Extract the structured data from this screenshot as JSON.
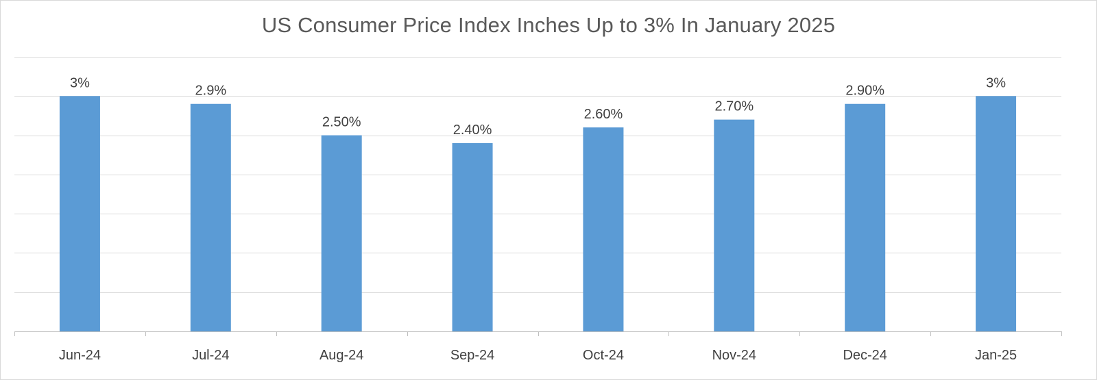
{
  "chart_data": {
    "type": "bar",
    "title": "US Consumer Price Index Inches Up to 3% In January 2025",
    "categories": [
      "Jun-24",
      "Jul-24",
      "Aug-24",
      "Sep-24",
      "Oct-24",
      "Nov-24",
      "Dec-24",
      "Jan-25"
    ],
    "values": [
      3.0,
      2.9,
      2.5,
      2.4,
      2.6,
      2.7,
      2.9,
      3.0
    ],
    "data_labels": [
      "3%",
      "2.9%",
      "2.50%",
      "2.40%",
      "2.60%",
      "2.70%",
      "2.90%",
      "3%"
    ],
    "xlabel": "",
    "ylabel": "",
    "ylim": [
      0,
      3.5
    ],
    "grid": true,
    "bar_color": "#5b9bd5",
    "legend": "none"
  }
}
